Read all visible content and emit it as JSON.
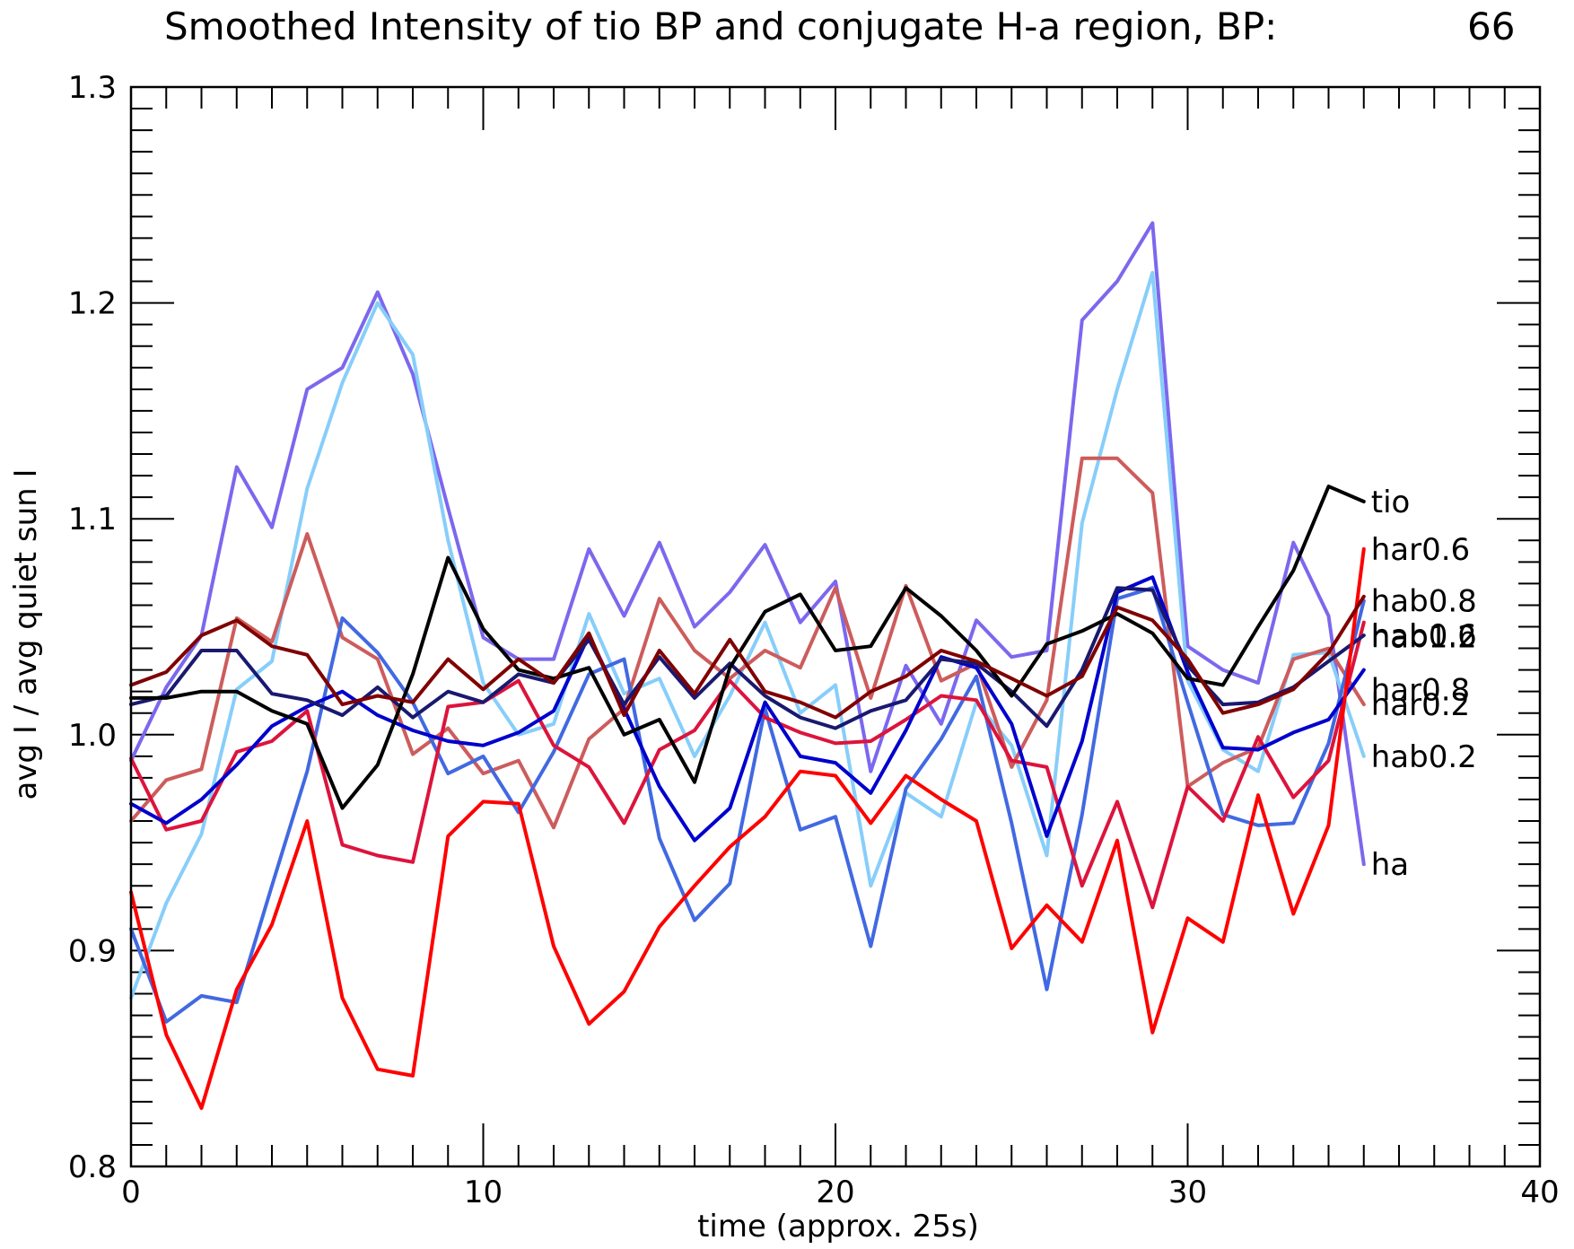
{
  "chart_data": {
    "type": "line",
    "title": "Smoothed Intensity of tio BP and conjugate H-a region, BP:",
    "title_value": "66",
    "xlabel": "time (approx. 25s)",
    "ylabel": "avg I / avg quiet sun I",
    "xlim": [
      0,
      40
    ],
    "ylim": [
      0.8,
      1.3
    ],
    "x_major_ticks": [
      0,
      10,
      20,
      30,
      40
    ],
    "x_tick_labels": [
      "0",
      "10",
      "20",
      "30",
      "40"
    ],
    "y_major_ticks": [
      0.8,
      0.9,
      1.0,
      1.1,
      1.2,
      1.3
    ],
    "y_tick_labels": [
      "0.8",
      "0.9",
      "1.0",
      "1.1",
      "1.2",
      "1.3"
    ],
    "grid": false,
    "legend": "labels at right end of each line",
    "x": [
      0,
      1,
      2,
      3,
      4,
      5,
      6,
      7,
      8,
      9,
      10,
      11,
      12,
      13,
      14,
      15,
      16,
      17,
      18,
      19,
      20,
      21,
      22,
      23,
      24,
      25,
      26,
      27,
      28,
      29,
      30,
      31,
      32,
      33,
      34,
      35
    ],
    "series": [
      {
        "name": "ha",
        "color": "#7b68ee",
        "values": [
          0.988,
          1.022,
          1.046,
          1.124,
          1.096,
          1.16,
          1.17,
          1.205,
          1.167,
          1.105,
          1.045,
          1.035,
          1.035,
          1.086,
          1.055,
          1.089,
          1.05,
          1.066,
          1.088,
          1.052,
          1.071,
          0.983,
          1.032,
          1.005,
          1.053,
          1.036,
          1.039,
          1.192,
          1.21,
          1.237,
          1.041,
          1.03,
          1.024,
          1.089,
          1.055,
          0.94
        ]
      },
      {
        "name": "hab0.2",
        "color": "#87cefa",
        "values": [
          0.878,
          0.922,
          0.954,
          1.021,
          1.034,
          1.114,
          1.163,
          1.2,
          1.176,
          1.09,
          1.024,
          1.0,
          1.005,
          1.056,
          1.019,
          1.026,
          0.99,
          1.018,
          1.052,
          1.01,
          1.023,
          0.93,
          0.973,
          0.962,
          1.015,
          0.995,
          0.944,
          1.098,
          1.16,
          1.214,
          1.025,
          0.993,
          0.983,
          1.037,
          1.038,
          0.99
        ]
      },
      {
        "name": "har0.2",
        "color": "#cd5c5c",
        "values": [
          0.96,
          0.979,
          0.984,
          1.054,
          1.043,
          1.093,
          1.045,
          1.035,
          0.991,
          1.003,
          0.982,
          0.988,
          0.957,
          0.998,
          1.012,
          1.063,
          1.039,
          1.026,
          1.039,
          1.031,
          1.068,
          1.017,
          1.069,
          1.025,
          1.033,
          0.985,
          1.016,
          1.128,
          1.128,
          1.112,
          0.976,
          0.987,
          0.994,
          1.035,
          1.04,
          1.014
        ]
      },
      {
        "name": "hab0.8",
        "color": "#4169e1",
        "values": [
          0.91,
          0.867,
          0.879,
          0.876,
          0.93,
          0.983,
          1.054,
          1.038,
          1.015,
          0.982,
          0.99,
          0.964,
          0.992,
          1.028,
          1.035,
          0.952,
          0.914,
          0.931,
          1.012,
          0.956,
          0.962,
          0.902,
          0.975,
          0.998,
          1.027,
          0.959,
          0.882,
          0.963,
          1.063,
          1.068,
          1.015,
          0.963,
          0.958,
          0.959,
          0.996,
          1.062
        ]
      },
      {
        "name": "hab1.2",
        "color": "#dc143c",
        "values": [
          0.989,
          0.956,
          0.96,
          0.992,
          0.997,
          1.011,
          0.949,
          0.944,
          0.941,
          1.013,
          1.015,
          1.025,
          0.995,
          0.985,
          0.959,
          0.993,
          1.002,
          1.025,
          1.008,
          1.001,
          0.996,
          0.997,
          1.007,
          1.018,
          1.016,
          0.988,
          0.985,
          0.93,
          0.969,
          0.92,
          0.976,
          0.96,
          0.999,
          0.971,
          0.988,
          1.052
        ]
      },
      {
        "name": "har0.8",
        "color": "#0000cd",
        "values": [
          0.968,
          0.959,
          0.97,
          0.986,
          1.004,
          1.013,
          1.02,
          1.009,
          1.002,
          0.997,
          0.995,
          1.001,
          1.011,
          1.046,
          1.012,
          0.976,
          0.951,
          0.966,
          1.015,
          0.99,
          0.987,
          0.973,
          1.002,
          1.036,
          1.031,
          1.005,
          0.953,
          0.997,
          1.066,
          1.073,
          1.029,
          0.994,
          0.993,
          1.001,
          1.007,
          1.03
        ]
      },
      {
        "name": "hab0.6",
        "color": "#191970",
        "values": [
          1.014,
          1.018,
          1.039,
          1.039,
          1.019,
          1.016,
          1.009,
          1.022,
          1.008,
          1.02,
          1.015,
          1.028,
          1.024,
          1.044,
          1.014,
          1.036,
          1.017,
          1.033,
          1.018,
          1.008,
          1.003,
          1.011,
          1.016,
          1.035,
          1.033,
          1.02,
          1.004,
          1.03,
          1.068,
          1.067,
          1.032,
          1.014,
          1.015,
          1.022,
          1.034,
          1.046
        ]
      },
      {
        "name": "har0.6",
        "color": "#ff0000",
        "values": [
          0.927,
          0.861,
          0.827,
          0.882,
          0.912,
          0.96,
          0.878,
          0.845,
          0.842,
          0.953,
          0.969,
          0.968,
          0.902,
          0.866,
          0.881,
          0.911,
          0.93,
          0.948,
          0.962,
          0.983,
          0.981,
          0.959,
          0.981,
          0.97,
          0.96,
          0.901,
          0.921,
          0.904,
          0.951,
          0.862,
          0.915,
          0.904,
          0.972,
          0.917,
          0.958,
          1.086
        ]
      },
      {
        "name": "tio",
        "color": "#000000",
        "values": [
          1.017,
          1.017,
          1.02,
          1.02,
          1.011,
          1.005,
          0.966,
          0.986,
          1.028,
          1.082,
          1.049,
          1.03,
          1.026,
          1.031,
          1.0,
          1.007,
          0.978,
          1.031,
          1.057,
          1.065,
          1.039,
          1.041,
          1.068,
          1.055,
          1.039,
          1.018,
          1.042,
          1.048,
          1.056,
          1.047,
          1.026,
          1.023,
          1.05,
          1.076,
          1.115,
          1.108
        ]
      },
      {
        "name": "",
        "color": "#800000",
        "values": [
          1.023,
          1.029,
          1.046,
          1.053,
          1.041,
          1.037,
          1.014,
          1.018,
          1.015,
          1.035,
          1.021,
          1.035,
          1.024,
          1.047,
          1.009,
          1.039,
          1.019,
          1.044,
          1.02,
          1.015,
          1.008,
          1.02,
          1.027,
          1.039,
          1.034,
          1.026,
          1.018,
          1.027,
          1.059,
          1.053,
          1.035,
          1.01,
          1.014,
          1.021,
          1.038,
          1.064
        ]
      }
    ]
  }
}
